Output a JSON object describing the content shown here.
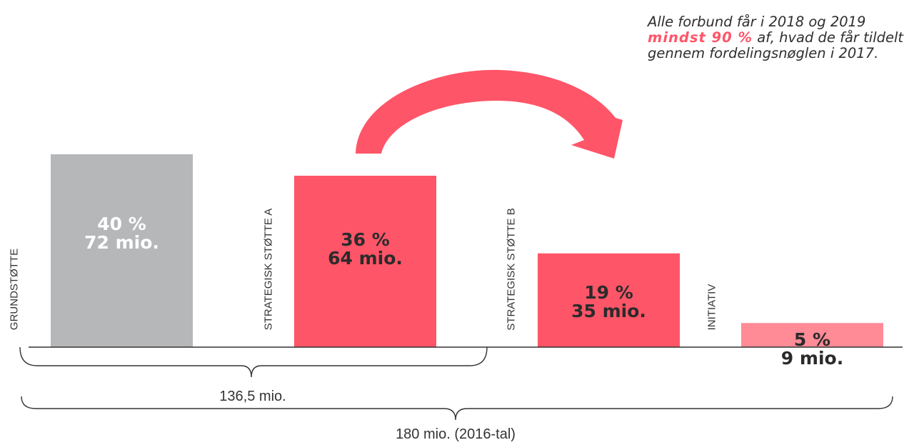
{
  "chart_data": {
    "type": "bar",
    "categories": [
      "GRUNDSTØTTE",
      "STRATEGISK STØTTE A",
      "STRATEGISK STØTTE B",
      "INITIATIV"
    ],
    "values": [
      72,
      64,
      35,
      9
    ],
    "percent_labels": [
      "40 %",
      "36 %",
      "19 %",
      "5 %"
    ],
    "amount_labels": [
      "72 mio.",
      "64 mio.",
      "35 mio.",
      "9 mio."
    ],
    "bar_colors": [
      "#b5b7b9",
      "#ff5568",
      "#ff5568",
      "#ff8b97"
    ],
    "arrow_color": "#ff5568",
    "ylim": [
      0,
      80
    ],
    "grid": false
  },
  "braces": {
    "subtotal": "136,5 mio.",
    "total": "180 mio. (2016-tal)"
  },
  "note": {
    "before": "Alle forbund får i 2018 og 2019",
    "emphasis": "mindst 90 %",
    "after": "af, hvad de får tildelt gennem fordelingsnøglen i 2017."
  }
}
